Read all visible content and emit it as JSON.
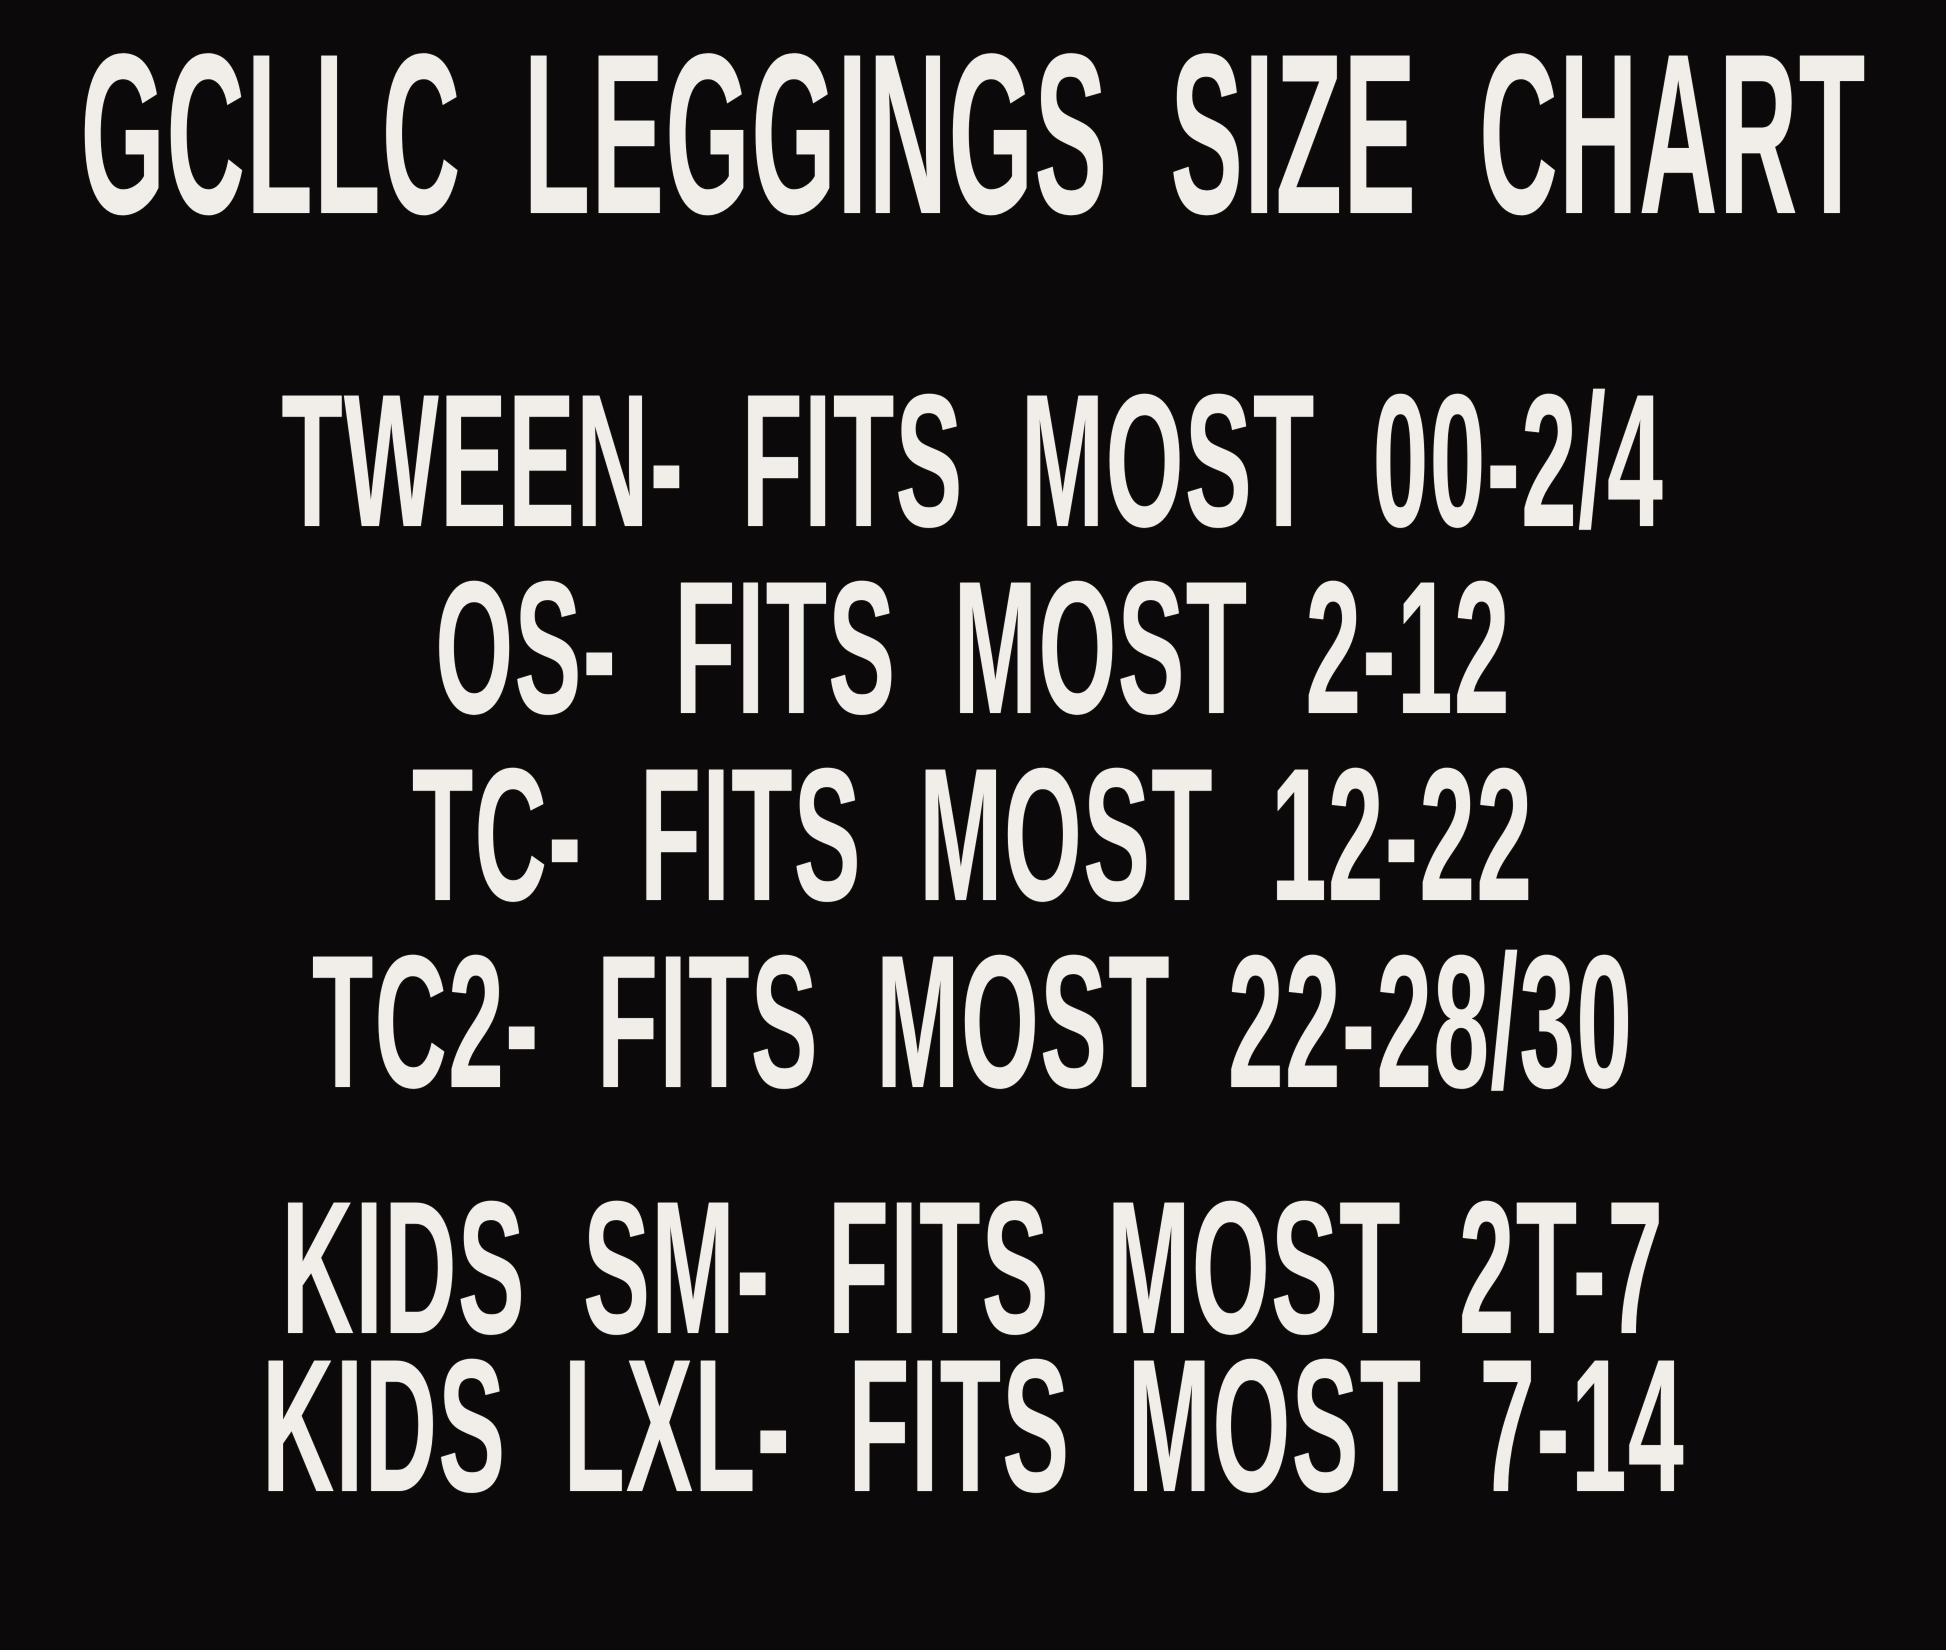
{
  "poster": {
    "background_color": "#0b090a",
    "text_color": "#f1eee9",
    "title": "GCLLC LEGGINGS SIZE CHART"
  },
  "groups": [
    {
      "name": "adult-sizes",
      "lines": [
        {
          "label": "TWEEN",
          "fits": "00-2/4",
          "text": "TWEEN- FITS MOST 00-2/4"
        },
        {
          "label": "OS",
          "fits": "2-12",
          "text": "OS- FITS MOST 2-12"
        },
        {
          "label": "TC",
          "fits": "12-22",
          "text": "TC- FITS MOST 12-22"
        },
        {
          "label": "TC2",
          "fits": "22-28/30",
          "text": "TC2- FITS MOST 22-28/30"
        }
      ]
    },
    {
      "name": "kids-sizes",
      "lines": [
        {
          "label": "KIDS SM",
          "fits": "2T-7",
          "text": "KIDS SM- FITS MOST 2T-7"
        },
        {
          "label": "KIDS LXL",
          "fits": "7-14",
          "text": "KIDS LXL- FITS MOST 7-14"
        }
      ]
    }
  ]
}
